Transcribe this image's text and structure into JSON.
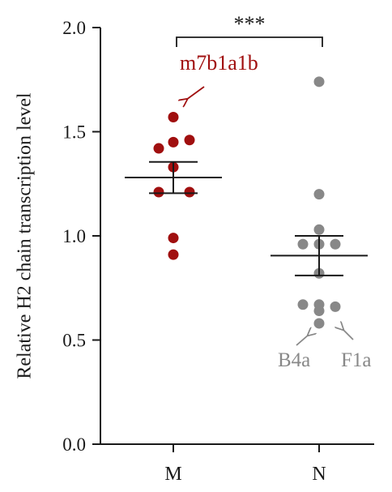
{
  "chart_data": {
    "type": "scatter",
    "title": "",
    "xlabel": "",
    "ylabel": "Relative H2 chain transcription level",
    "ylim": [
      0,
      2.0
    ],
    "yticks": [
      "0.0",
      "0.5",
      "1.0",
      "1.5",
      "2.0"
    ],
    "categories": [
      "M",
      "N"
    ],
    "grid": false,
    "legend": "none",
    "series": [
      {
        "category": "M",
        "color": "#a00f0f",
        "values": [
          1.57,
          1.42,
          1.45,
          1.46,
          1.33,
          1.21,
          1.21,
          0.99,
          0.91
        ],
        "mean": 1.28,
        "sem": [
          1.205,
          1.355
        ]
      },
      {
        "category": "N",
        "color": "#888888",
        "values": [
          1.74,
          1.2,
          1.03,
          0.96,
          0.96,
          0.96,
          0.82,
          0.67,
          0.67,
          0.66,
          0.64,
          0.58
        ],
        "mean": 0.905,
        "sem": [
          0.81,
          1.0
        ]
      }
    ],
    "significance": {
      "between": [
        "M",
        "N"
      ],
      "label": "***"
    },
    "annotations": [
      {
        "text": "m7b1a1b",
        "color": "#a00f0f",
        "category": "M",
        "y": 1.57
      },
      {
        "text": "B4a",
        "color": "#888888",
        "category": "N",
        "y": 0.58
      },
      {
        "text": "F1a",
        "color": "#888888",
        "category": "N",
        "y": 0.64
      }
    ]
  }
}
